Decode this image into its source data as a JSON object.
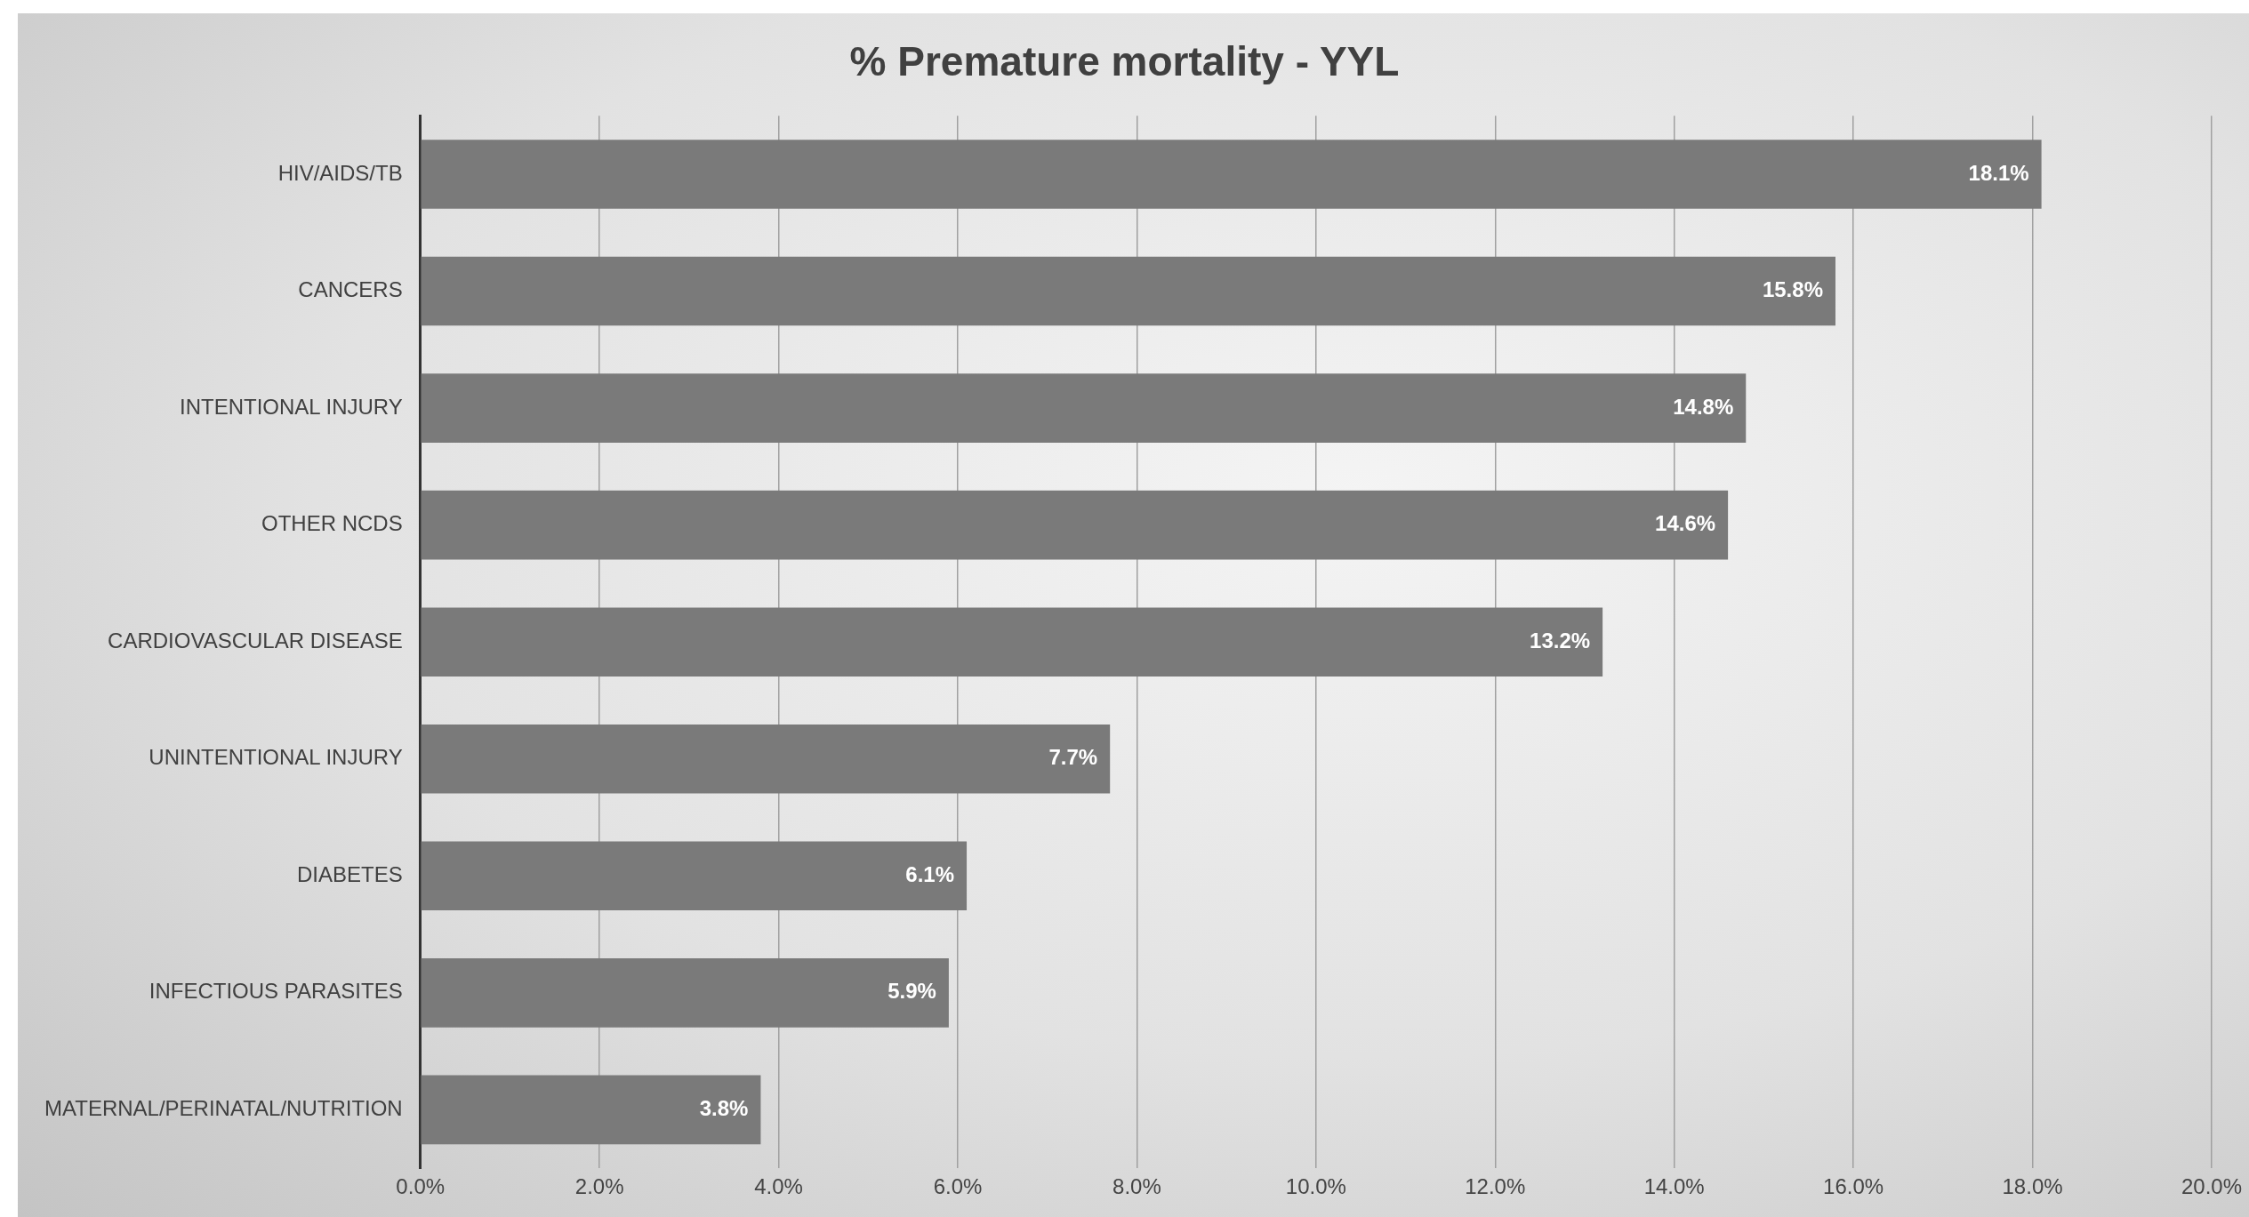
{
  "chart_data": {
    "type": "bar",
    "orientation": "horizontal",
    "title": "% Premature mortality - YYL",
    "categories": [
      "HIV/AIDS/TB",
      "CANCERS",
      "INTENTIONAL INJURY",
      "OTHER NCDS",
      "CARDIOVASCULAR DISEASE",
      "UNINTENTIONAL INJURY",
      "DIABETES",
      "INFECTIOUS PARASITES",
      "MATERNAL/PERINATAL/NUTRITION"
    ],
    "values": [
      18.1,
      15.8,
      14.8,
      14.6,
      13.2,
      7.7,
      6.1,
      5.9,
      3.8
    ],
    "value_labels": [
      "18.1%",
      "15.8%",
      "14.8%",
      "14.6%",
      "13.2%",
      "7.7%",
      "6.1%",
      "5.9%",
      "3.8%"
    ],
    "color": "#7a7a7a",
    "xlim": [
      0,
      20
    ],
    "xticks": [
      {
        "value": 0,
        "label": "0.0%"
      },
      {
        "value": 2,
        "label": "2.0%"
      },
      {
        "value": 4,
        "label": "4.0%"
      },
      {
        "value": 6,
        "label": "6.0%"
      },
      {
        "value": 8,
        "label": "8.0%"
      },
      {
        "value": 10,
        "label": "10.0%"
      },
      {
        "value": 12,
        "label": "12.0%"
      },
      {
        "value": 14,
        "label": "14.0%"
      },
      {
        "value": 16,
        "label": "16.0%"
      },
      {
        "value": 18,
        "label": "18.0%"
      },
      {
        "value": 20,
        "label": "20.0%"
      }
    ],
    "grid": "x",
    "legend": false
  }
}
